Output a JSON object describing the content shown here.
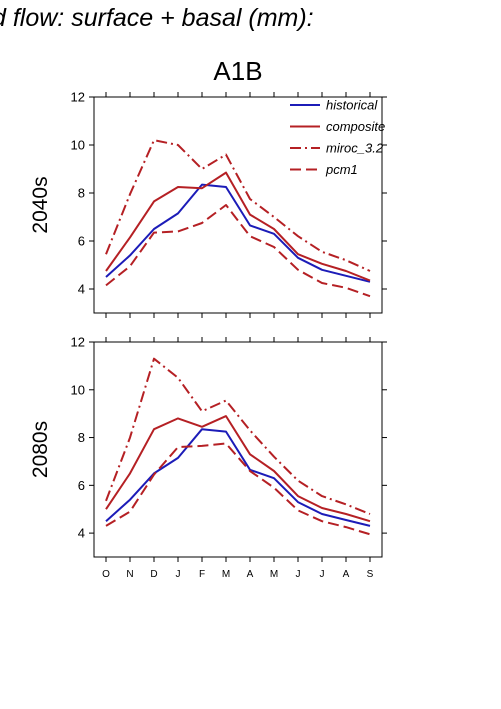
{
  "figure_title": "d flow: surface + basal (mm):",
  "panel_title": "A1B",
  "colors": {
    "historical": "#1c1cb8",
    "scenario": "#b52024"
  },
  "chart_data": [
    {
      "type": "line",
      "row_label": "2040s",
      "categories": [
        "O",
        "N",
        "D",
        "J",
        "F",
        "M",
        "A",
        "M",
        "J",
        "J",
        "A",
        "S"
      ],
      "ylim": [
        3,
        12
      ],
      "yticks": [
        4,
        6,
        8,
        10,
        12
      ],
      "grid": false,
      "legend_position": "top-right",
      "series": [
        {
          "name": "historical",
          "style": "solid",
          "color": "#1c1cb8",
          "values": [
            4.5,
            5.4,
            6.5,
            7.15,
            8.35,
            8.25,
            6.65,
            6.3,
            5.3,
            4.8,
            4.55,
            4.3
          ]
        },
        {
          "name": "composite",
          "style": "solid",
          "color": "#b52024",
          "values": [
            4.75,
            6.15,
            7.65,
            8.25,
            8.2,
            8.85,
            7.1,
            6.5,
            5.45,
            5.05,
            4.75,
            4.35
          ]
        },
        {
          "name": "miroc_3.2",
          "style": "dashdot",
          "color": "#b52024",
          "values": [
            5.45,
            7.95,
            10.2,
            10.0,
            9.0,
            9.6,
            7.75,
            7.0,
            6.2,
            5.55,
            5.2,
            4.75
          ]
        },
        {
          "name": "pcm1",
          "style": "dash",
          "color": "#b52024",
          "values": [
            4.15,
            4.95,
            6.35,
            6.4,
            6.75,
            7.5,
            6.2,
            5.75,
            4.8,
            4.25,
            4.05,
            3.7
          ]
        }
      ]
    },
    {
      "type": "line",
      "row_label": "2080s",
      "categories": [
        "O",
        "N",
        "D",
        "J",
        "F",
        "M",
        "A",
        "M",
        "J",
        "J",
        "A",
        "S"
      ],
      "ylim": [
        3,
        12
      ],
      "yticks": [
        4,
        6,
        8,
        10,
        12
      ],
      "grid": false,
      "series": [
        {
          "name": "historical",
          "style": "solid",
          "color": "#1c1cb8",
          "values": [
            4.5,
            5.4,
            6.5,
            7.15,
            8.35,
            8.25,
            6.65,
            6.3,
            5.3,
            4.8,
            4.55,
            4.3
          ]
        },
        {
          "name": "composite",
          "style": "solid",
          "color": "#b52024",
          "values": [
            5.0,
            6.5,
            8.35,
            8.8,
            8.45,
            8.9,
            7.3,
            6.6,
            5.55,
            5.05,
            4.8,
            4.5
          ]
        },
        {
          "name": "miroc_3.2",
          "style": "dashdot",
          "color": "#b52024",
          "values": [
            5.35,
            8.0,
            11.3,
            10.5,
            9.1,
            9.55,
            8.3,
            7.2,
            6.2,
            5.55,
            5.2,
            4.8
          ]
        },
        {
          "name": "pcm1",
          "style": "dash",
          "color": "#b52024",
          "values": [
            4.3,
            4.9,
            6.45,
            7.6,
            7.65,
            7.75,
            6.6,
            5.9,
            4.95,
            4.5,
            4.25,
            3.95
          ]
        }
      ]
    }
  ]
}
